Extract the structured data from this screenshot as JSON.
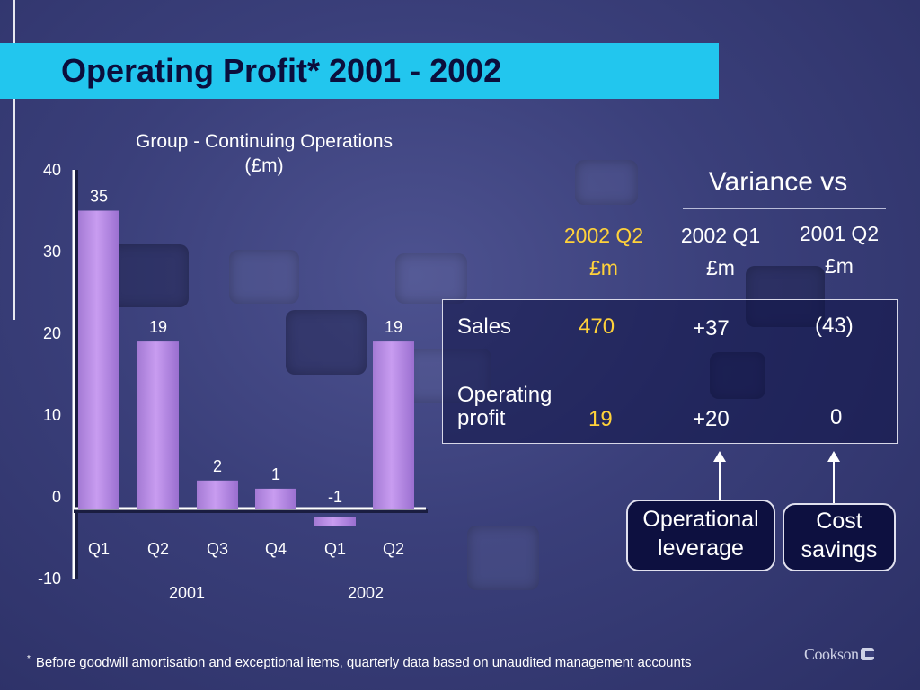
{
  "slide": {
    "title": "Operating Profit* 2001 - 2002",
    "footnote_marker": "*",
    "footnote": "Before goodwill amortisation and exceptional items, quarterly data based on unaudited management accounts",
    "logo_text": "Cookson"
  },
  "chart_data": {
    "type": "bar",
    "title_line1": "Group - Continuing Operations",
    "title_line2": "(£m)",
    "categories": [
      "Q1",
      "Q2",
      "Q3",
      "Q4",
      "Q1",
      "Q2"
    ],
    "groups": [
      "2001",
      "2002"
    ],
    "values": [
      35,
      19,
      2,
      1,
      -1,
      19
    ],
    "data_labels": [
      "35",
      "19",
      "2",
      "1",
      "-1",
      "19"
    ],
    "ylim": [
      -10,
      40
    ],
    "yticks": [
      40,
      30,
      20,
      10,
      0,
      -10
    ],
    "bar_color": "#c89cf0",
    "grid": false
  },
  "variance": {
    "heading": "Variance vs",
    "columns": [
      {
        "line1": "2002 Q2",
        "line2": "£m"
      },
      {
        "line1": "2002 Q1",
        "line2": "£m"
      },
      {
        "line1": "2001 Q2",
        "line2": "£m"
      }
    ],
    "rows": [
      {
        "label_line1": "Sales",
        "label_line2": "",
        "values": [
          "470",
          "+37",
          "(43)"
        ]
      },
      {
        "label_line1": "Operating",
        "label_line2": "profit",
        "values": [
          "19",
          "+20",
          "0"
        ]
      }
    ],
    "callouts": [
      "Operational leverage",
      "Cost savings"
    ],
    "callout_lines": [
      [
        "Operational",
        "leverage"
      ],
      [
        "Cost",
        "savings"
      ]
    ]
  },
  "colors": {
    "accent_bar": "#22c6ee",
    "title_text": "#0b0e3c",
    "highlight_yellow": "#ffd23a",
    "background": "#3a3f7a"
  }
}
